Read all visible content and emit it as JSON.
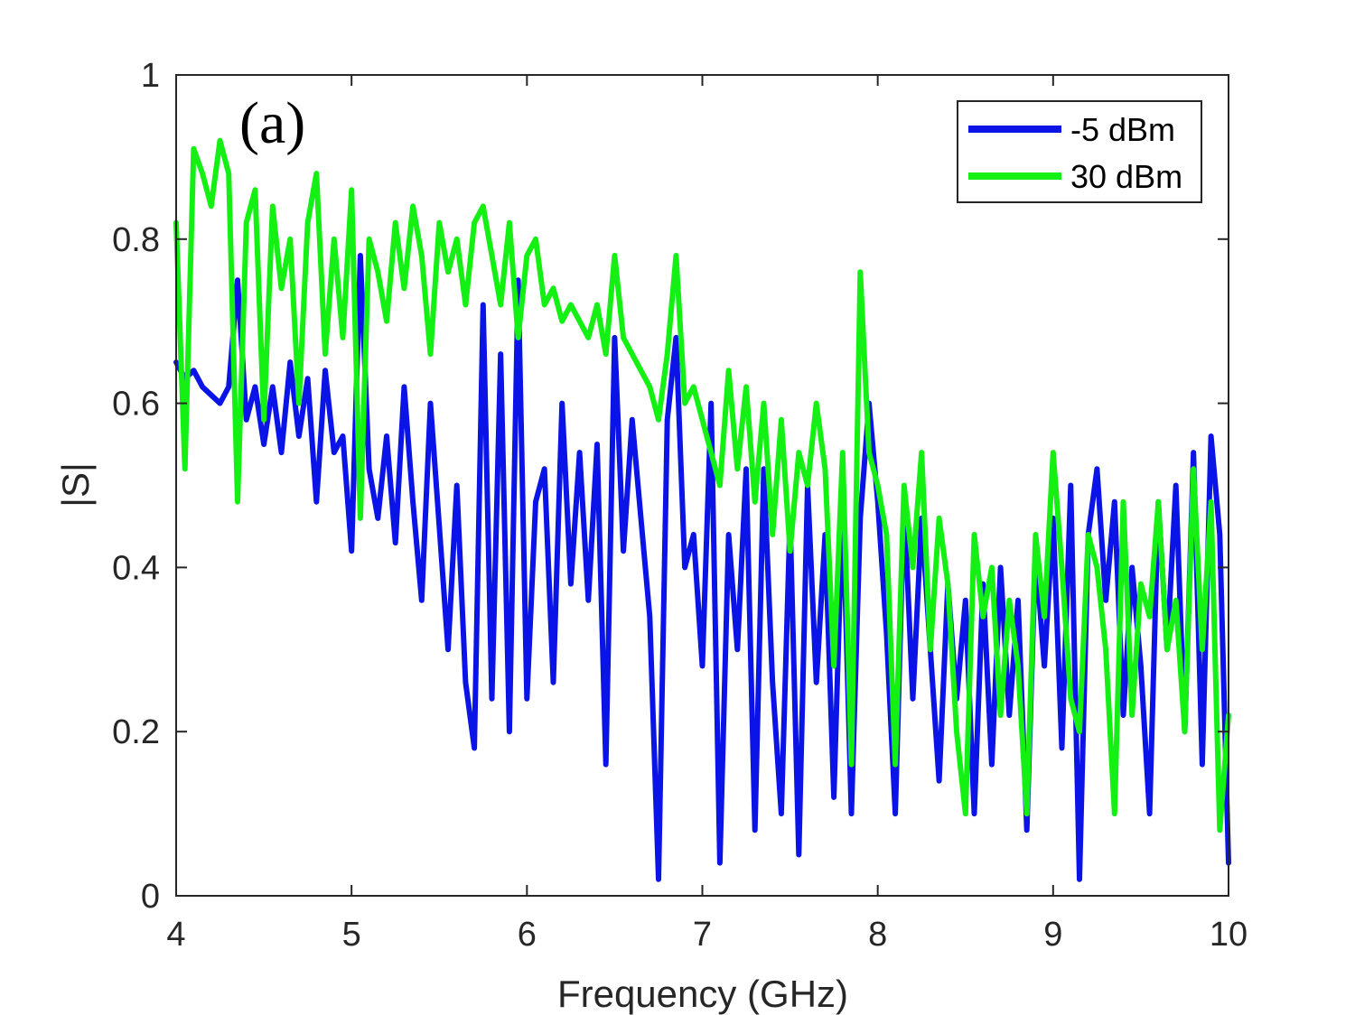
{
  "chart_data": {
    "type": "line",
    "title": "",
    "annotation": "(a)",
    "xlabel": "Frequency (GHz)",
    "ylabel": "|S|",
    "xlim": [
      4,
      10
    ],
    "ylim": [
      0,
      1
    ],
    "xticks": [
      4,
      5,
      6,
      7,
      8,
      9,
      10
    ],
    "xtick_labels": [
      "4",
      "5",
      "6",
      "7",
      "8",
      "9",
      "10"
    ],
    "yticks": [
      0,
      0.2,
      0.4,
      0.6,
      0.8,
      1
    ],
    "ytick_labels": [
      "0",
      "0.2",
      "0.4",
      "0.6",
      "0.8",
      "1"
    ],
    "grid": false,
    "legend_position": "top-right",
    "series": [
      {
        "name": "-5 dBm",
        "color": "#0a14e6",
        "x": [
          4.0,
          4.05,
          4.1,
          4.15,
          4.2,
          4.25,
          4.3,
          4.35,
          4.4,
          4.45,
          4.5,
          4.55,
          4.6,
          4.65,
          4.7,
          4.75,
          4.8,
          4.85,
          4.9,
          4.95,
          5.0,
          5.05,
          5.1,
          5.15,
          5.2,
          5.25,
          5.3,
          5.35,
          5.4,
          5.45,
          5.5,
          5.55,
          5.6,
          5.65,
          5.7,
          5.75,
          5.8,
          5.85,
          5.9,
          5.95,
          6.0,
          6.05,
          6.1,
          6.15,
          6.2,
          6.25,
          6.3,
          6.35,
          6.4,
          6.45,
          6.5,
          6.55,
          6.6,
          6.65,
          6.7,
          6.75,
          6.8,
          6.85,
          6.9,
          6.95,
          7.0,
          7.05,
          7.1,
          7.15,
          7.2,
          7.25,
          7.3,
          7.35,
          7.4,
          7.45,
          7.5,
          7.55,
          7.6,
          7.65,
          7.7,
          7.75,
          7.8,
          7.85,
          7.9,
          7.95,
          8.0,
          8.05,
          8.1,
          8.15,
          8.2,
          8.25,
          8.3,
          8.35,
          8.4,
          8.45,
          8.5,
          8.55,
          8.6,
          8.65,
          8.7,
          8.75,
          8.8,
          8.85,
          8.9,
          8.95,
          9.0,
          9.05,
          9.1,
          9.15,
          9.2,
          9.25,
          9.3,
          9.35,
          9.4,
          9.45,
          9.5,
          9.55,
          9.6,
          9.65,
          9.7,
          9.75,
          9.8,
          9.85,
          9.9,
          9.95,
          10.0
        ],
        "values": [
          0.65,
          0.63,
          0.64,
          0.62,
          0.61,
          0.6,
          0.62,
          0.75,
          0.58,
          0.62,
          0.55,
          0.62,
          0.54,
          0.65,
          0.56,
          0.63,
          0.48,
          0.64,
          0.54,
          0.56,
          0.42,
          0.78,
          0.52,
          0.46,
          0.56,
          0.43,
          0.62,
          0.48,
          0.36,
          0.6,
          0.45,
          0.3,
          0.5,
          0.26,
          0.18,
          0.72,
          0.24,
          0.66,
          0.2,
          0.75,
          0.24,
          0.48,
          0.52,
          0.26,
          0.6,
          0.38,
          0.54,
          0.36,
          0.55,
          0.16,
          0.68,
          0.42,
          0.58,
          0.46,
          0.34,
          0.02,
          0.58,
          0.68,
          0.4,
          0.44,
          0.28,
          0.6,
          0.04,
          0.44,
          0.3,
          0.52,
          0.08,
          0.52,
          0.26,
          0.1,
          0.46,
          0.05,
          0.5,
          0.26,
          0.44,
          0.12,
          0.48,
          0.1,
          0.46,
          0.6,
          0.48,
          0.32,
          0.1,
          0.48,
          0.24,
          0.46,
          0.3,
          0.14,
          0.38,
          0.24,
          0.36,
          0.1,
          0.38,
          0.16,
          0.4,
          0.22,
          0.36,
          0.08,
          0.42,
          0.28,
          0.46,
          0.18,
          0.5,
          0.02,
          0.44,
          0.52,
          0.36,
          0.48,
          0.22,
          0.4,
          0.28,
          0.1,
          0.48,
          0.3,
          0.5,
          0.2,
          0.54,
          0.16,
          0.56,
          0.44,
          0.04
        ],
        "style": "solid"
      },
      {
        "name": "30 dBm",
        "color": "#14f014",
        "x": [
          4.0,
          4.05,
          4.1,
          4.15,
          4.2,
          4.25,
          4.3,
          4.35,
          4.4,
          4.45,
          4.5,
          4.55,
          4.6,
          4.65,
          4.7,
          4.75,
          4.8,
          4.85,
          4.9,
          4.95,
          5.0,
          5.05,
          5.1,
          5.15,
          5.2,
          5.25,
          5.3,
          5.35,
          5.4,
          5.45,
          5.5,
          5.55,
          5.6,
          5.65,
          5.7,
          5.75,
          5.8,
          5.85,
          5.9,
          5.95,
          6.0,
          6.05,
          6.1,
          6.15,
          6.2,
          6.25,
          6.3,
          6.35,
          6.4,
          6.45,
          6.5,
          6.55,
          6.6,
          6.65,
          6.7,
          6.75,
          6.8,
          6.85,
          6.9,
          6.95,
          7.0,
          7.05,
          7.1,
          7.15,
          7.2,
          7.25,
          7.3,
          7.35,
          7.4,
          7.45,
          7.5,
          7.55,
          7.6,
          7.65,
          7.7,
          7.75,
          7.8,
          7.85,
          7.9,
          7.95,
          8.0,
          8.05,
          8.1,
          8.15,
          8.2,
          8.25,
          8.3,
          8.35,
          8.4,
          8.45,
          8.5,
          8.55,
          8.6,
          8.65,
          8.7,
          8.75,
          8.8,
          8.85,
          8.9,
          8.95,
          9.0,
          9.05,
          9.1,
          9.15,
          9.2,
          9.25,
          9.3,
          9.35,
          9.4,
          9.45,
          9.5,
          9.55,
          9.6,
          9.65,
          9.7,
          9.75,
          9.8,
          9.85,
          9.9,
          9.95,
          10.0
        ],
        "values": [
          0.82,
          0.52,
          0.91,
          0.88,
          0.84,
          0.92,
          0.88,
          0.48,
          0.82,
          0.86,
          0.58,
          0.84,
          0.74,
          0.8,
          0.6,
          0.82,
          0.88,
          0.66,
          0.8,
          0.68,
          0.86,
          0.46,
          0.8,
          0.76,
          0.7,
          0.82,
          0.74,
          0.84,
          0.78,
          0.66,
          0.82,
          0.76,
          0.8,
          0.72,
          0.82,
          0.84,
          0.78,
          0.72,
          0.82,
          0.68,
          0.78,
          0.8,
          0.72,
          0.74,
          0.7,
          0.72,
          0.7,
          0.68,
          0.72,
          0.66,
          0.78,
          0.68,
          0.66,
          0.64,
          0.62,
          0.58,
          0.66,
          0.78,
          0.6,
          0.62,
          0.58,
          0.54,
          0.5,
          0.64,
          0.52,
          0.62,
          0.48,
          0.6,
          0.44,
          0.58,
          0.42,
          0.54,
          0.5,
          0.6,
          0.52,
          0.28,
          0.54,
          0.16,
          0.76,
          0.54,
          0.5,
          0.44,
          0.16,
          0.5,
          0.4,
          0.54,
          0.3,
          0.46,
          0.38,
          0.2,
          0.1,
          0.44,
          0.34,
          0.4,
          0.22,
          0.36,
          0.28,
          0.1,
          0.44,
          0.34,
          0.54,
          0.4,
          0.24,
          0.2,
          0.44,
          0.4,
          0.3,
          0.1,
          0.48,
          0.22,
          0.38,
          0.34,
          0.48,
          0.3,
          0.36,
          0.2,
          0.52,
          0.3,
          0.48,
          0.08,
          0.22
        ],
        "style": "solid"
      }
    ]
  }
}
